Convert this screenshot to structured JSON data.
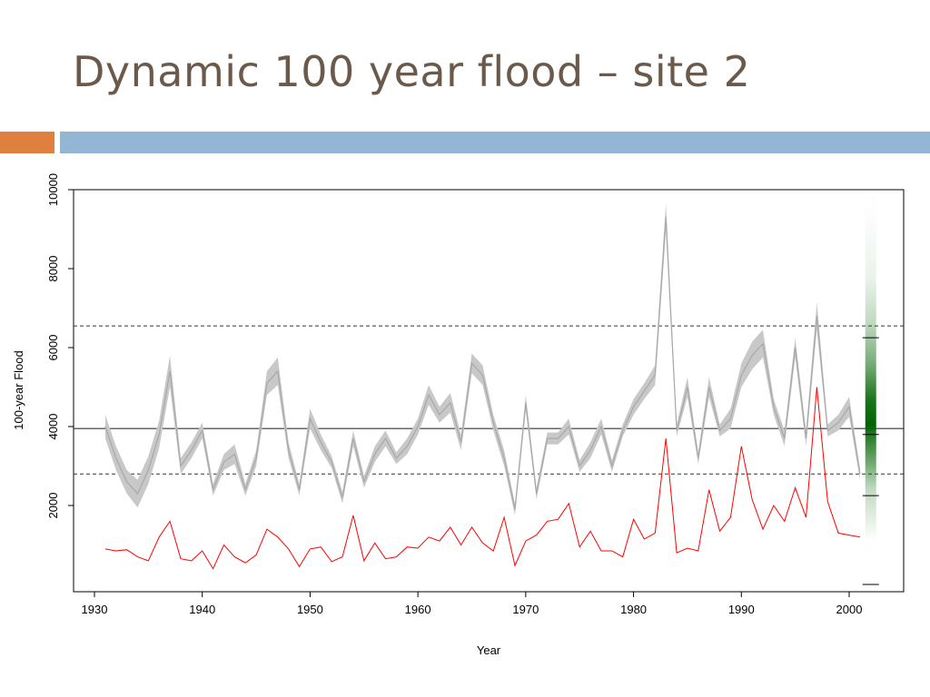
{
  "slide": {
    "title": "Dynamic 100 year flood – site 2"
  },
  "colors": {
    "title": "#6b5a4b",
    "accent_orange": "#e0803e",
    "accent_blue": "#93b6d5",
    "dynamic_band": "#c8c8c8",
    "dynamic_line": "#a8a8a8",
    "annual_flood": "#ff0000",
    "density": "#006400"
  },
  "chart_data": {
    "type": "line",
    "xlabel": "Year",
    "ylabel": "100-year Flood",
    "xlim": [
      1930,
      2005
    ],
    "ylim": [
      0,
      10000
    ],
    "x_ticks": [
      1930,
      1940,
      1950,
      1960,
      1970,
      1980,
      1990,
      2000
    ],
    "y_ticks": [
      2000,
      4000,
      6000,
      8000,
      10000
    ],
    "x": [
      1931,
      1932,
      1933,
      1934,
      1935,
      1936,
      1937,
      1938,
      1939,
      1940,
      1941,
      1942,
      1943,
      1944,
      1945,
      1946,
      1947,
      1948,
      1949,
      1950,
      1951,
      1952,
      1953,
      1954,
      1955,
      1956,
      1957,
      1958,
      1959,
      1960,
      1961,
      1962,
      1963,
      1964,
      1965,
      1966,
      1967,
      1968,
      1969,
      1970,
      1971,
      1972,
      1973,
      1974,
      1975,
      1976,
      1977,
      1978,
      1979,
      1980,
      1981,
      1982,
      1983,
      1984,
      1985,
      1986,
      1987,
      1988,
      1989,
      1990,
      1991,
      1992,
      1993,
      1994,
      1995,
      1996,
      1997,
      1998,
      1999,
      2000,
      2001
    ],
    "series": [
      {
        "role": "dynamic-100-year-flood",
        "values": [
          4000,
          3200,
          2600,
          2300,
          2900,
          3800,
          5400,
          3000,
          3400,
          3900,
          2400,
          3100,
          3300,
          2400,
          3200,
          5100,
          5400,
          3400,
          2400,
          4200,
          3600,
          3100,
          2200,
          3700,
          2600,
          3300,
          3700,
          3200,
          3500,
          4000,
          4800,
          4300,
          4600,
          3600,
          5600,
          5300,
          4100,
          3200,
          1900,
          4600,
          2300,
          3700,
          3700,
          4000,
          3000,
          3400,
          4000,
          3000,
          3900,
          4500,
          4900,
          5300,
          9300,
          3900,
          5000,
          3200,
          5000,
          3900,
          4200,
          5300,
          5800,
          6100,
          4500,
          3700,
          6000,
          3700,
          6800,
          3900,
          4100,
          4500,
          2800
        ],
        "band_halfwidth": [
          300,
          300,
          300,
          350,
          350,
          350,
          400,
          200,
          200,
          200,
          150,
          200,
          250,
          150,
          200,
          300,
          350,
          200,
          150,
          250,
          200,
          150,
          150,
          200,
          150,
          200,
          200,
          150,
          200,
          200,
          250,
          200,
          250,
          200,
          250,
          250,
          200,
          200,
          150,
          200,
          150,
          150,
          150,
          200,
          150,
          200,
          200,
          150,
          150,
          200,
          200,
          250,
          350,
          150,
          250,
          150,
          250,
          150,
          250,
          300,
          350,
          350,
          200,
          200,
          250,
          200,
          350,
          150,
          200,
          250,
          150
        ]
      },
      {
        "role": "annual-flood",
        "values": [
          900,
          850,
          880,
          700,
          600,
          1200,
          1600,
          650,
          600,
          850,
          400,
          1000,
          700,
          550,
          750,
          1400,
          1200,
          900,
          450,
          900,
          950,
          580,
          700,
          1750,
          600,
          1050,
          650,
          700,
          950,
          920,
          1200,
          1100,
          1450,
          1000,
          1450,
          1050,
          850,
          1700,
          480,
          1100,
          1250,
          1600,
          1650,
          2050,
          950,
          1350,
          850,
          850,
          700,
          1650,
          1150,
          1300,
          3700,
          800,
          920,
          850,
          2400,
          1350,
          1700,
          3500,
          2150,
          1400,
          2000,
          1600,
          2450,
          1700,
          5000,
          2100,
          1300,
          1250,
          1200
        ]
      }
    ],
    "reference_lines": {
      "solid": 3950,
      "dashed": [
        2800,
        6550
      ]
    },
    "density_bar": {
      "x": 2002,
      "ymin": 1100,
      "ymax": 10000,
      "mode": 3850,
      "ticks": [
        2250,
        3800,
        6250,
        0
      ]
    }
  }
}
